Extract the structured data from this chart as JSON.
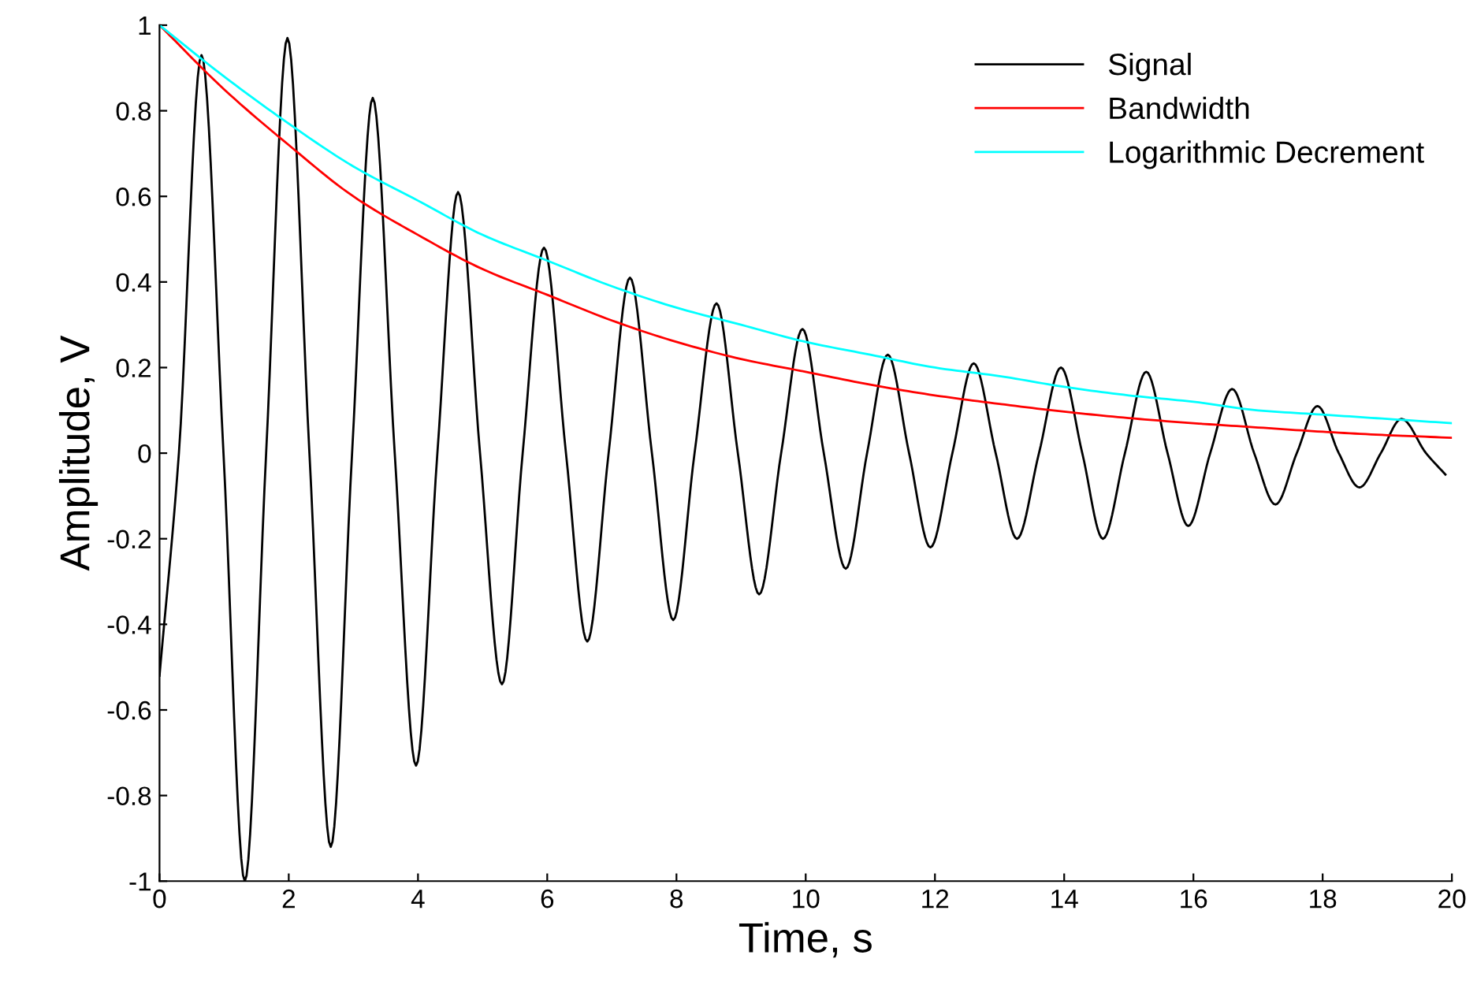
{
  "chart_data": {
    "type": "line",
    "xlabel": "Time, s",
    "ylabel": "Amplitude, V",
    "xlim": [
      0,
      20
    ],
    "ylim": [
      -1,
      1
    ],
    "xticks": [
      0,
      2,
      4,
      6,
      8,
      10,
      12,
      14,
      16,
      18,
      20
    ],
    "yticks": [
      -1,
      -0.8,
      -0.6,
      -0.4,
      -0.2,
      0,
      0.2,
      0.4,
      0.6,
      0.8,
      1
    ],
    "grid": false,
    "legend": "top right",
    "series": [
      {
        "name": "Signal",
        "color": "#000000",
        "x": [
          0,
          0.3,
          0.65,
          0.99,
          1.32,
          1.65,
          1.98,
          2.32,
          2.65,
          2.98,
          3.3,
          3.64,
          3.97,
          4.3,
          4.62,
          4.96,
          5.3,
          5.62,
          5.95,
          6.29,
          6.62,
          6.95,
          7.28,
          7.62,
          7.95,
          8.28,
          8.62,
          8.95,
          9.28,
          9.62,
          9.95,
          10.28,
          10.62,
          10.95,
          11.27,
          11.6,
          11.93,
          12.27,
          12.6,
          12.94,
          13.27,
          13.61,
          13.95,
          14.28,
          14.6,
          14.94,
          15.27,
          15.6,
          15.92,
          16.26,
          16.6,
          16.94,
          17.27,
          17.6,
          17.92,
          18.25,
          18.57,
          18.9,
          19.22,
          19.6,
          19.9
        ],
        "values": [
          -0.52,
          0,
          0.93,
          0,
          -1.0,
          0,
          0.97,
          0,
          -0.92,
          0,
          0.83,
          0,
          -0.73,
          0,
          0.61,
          0,
          -0.54,
          0,
          0.48,
          0,
          -0.44,
          0,
          0.41,
          0,
          -0.39,
          0,
          0.35,
          0,
          -0.33,
          0,
          0.29,
          0,
          -0.27,
          0,
          0.23,
          0,
          -0.22,
          0,
          0.21,
          0,
          -0.2,
          0,
          0.2,
          0,
          -0.2,
          0,
          0.19,
          0,
          -0.17,
          0,
          0.15,
          0,
          -0.12,
          0,
          0.11,
          0,
          -0.08,
          0,
          0.08,
          0,
          -0.05
        ]
      },
      {
        "name": "Bandwidth",
        "color": "#ff0000",
        "x": [
          0,
          1,
          2,
          3,
          4,
          5,
          6,
          7,
          8,
          9,
          10,
          11,
          12,
          13,
          14,
          15,
          16,
          17,
          18,
          19,
          20
        ],
        "values": [
          1,
          0.85,
          0.72,
          0.6,
          0.51,
          0.43,
          0.37,
          0.31,
          0.26,
          0.22,
          0.19,
          0.16,
          0.135,
          0.115,
          0.097,
          0.082,
          0.07,
          0.06,
          0.05,
          0.042,
          0.036
        ]
      },
      {
        "name": "Logarithmic Decrement",
        "color": "#00ffff",
        "x": [
          0,
          1,
          2,
          3,
          4,
          5,
          6,
          7,
          8,
          9,
          10,
          11,
          12,
          13,
          14,
          15,
          16,
          17,
          18,
          19,
          20
        ],
        "values": [
          1,
          0.88,
          0.77,
          0.67,
          0.59,
          0.51,
          0.45,
          0.39,
          0.34,
          0.3,
          0.26,
          0.23,
          0.2,
          0.18,
          0.155,
          0.135,
          0.12,
          0.1,
          0.09,
          0.08,
          0.07
        ]
      }
    ]
  }
}
